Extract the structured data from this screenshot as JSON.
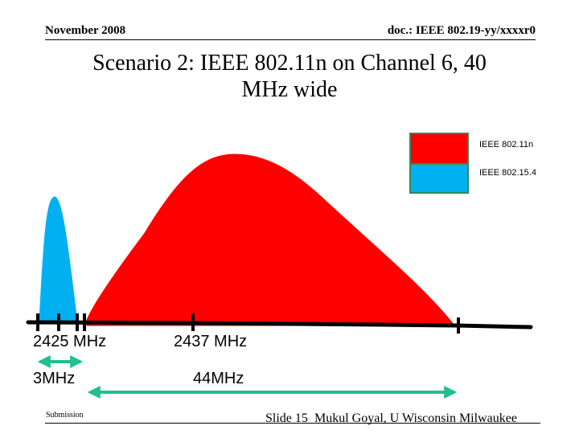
{
  "header": {
    "date": "November 2008",
    "doc_id": "doc.: IEEE 802.19-yy/xxxxr0"
  },
  "title": {
    "line1": "Scenario 2: IEEE 802.11n on Channel 6, 40",
    "line2": "MHz wide"
  },
  "legend": [
    {
      "label": "IEEE 802.11n",
      "color": "#ff0000"
    },
    {
      "label": "IEEE 802.15.4",
      "color": "#00b0f0"
    }
  ],
  "legend_border_color": "#2e8b57",
  "axis_labels": {
    "freq_left": "2425 MHz",
    "freq_center": "2437 MHz",
    "width_left": "3MHz",
    "width_right": "44MHz"
  },
  "arrow_color": "#1fbf8f",
  "footer": {
    "submission": "Submission",
    "slide": "Slide 15",
    "author": "Mukul Goyal, U Wisconsin Milwaukee"
  }
}
